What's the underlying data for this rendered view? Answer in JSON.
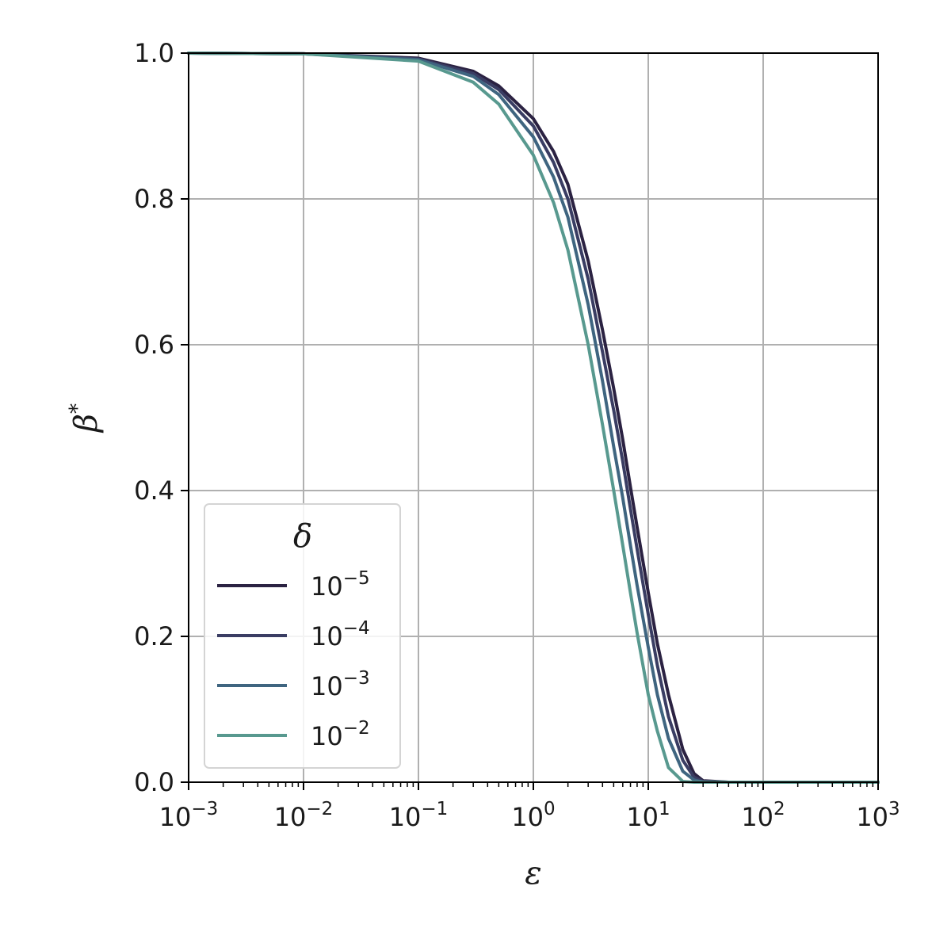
{
  "chart_data": {
    "type": "line",
    "title": "",
    "xlabel": "ε",
    "ylabel": "β*",
    "xscale": "log",
    "xlim": [
      0.001,
      1000
    ],
    "ylim": [
      0.0,
      1.0
    ],
    "grid": true,
    "legend": {
      "title": "δ",
      "placement": "lower-left"
    },
    "x_ticks": [
      {
        "value": 0.001,
        "base": "10",
        "exp": "−3"
      },
      {
        "value": 0.01,
        "base": "10",
        "exp": "−2"
      },
      {
        "value": 0.1,
        "base": "10",
        "exp": "−1"
      },
      {
        "value": 1,
        "base": "10",
        "exp": "0"
      },
      {
        "value": 10,
        "base": "10",
        "exp": "1"
      },
      {
        "value": 100,
        "base": "10",
        "exp": "2"
      },
      {
        "value": 1000,
        "base": "10",
        "exp": "3"
      }
    ],
    "y_ticks": [
      {
        "value": 0.0,
        "label": "0.0"
      },
      {
        "value": 0.2,
        "label": "0.2"
      },
      {
        "value": 0.4,
        "label": "0.4"
      },
      {
        "value": 0.6,
        "label": "0.6"
      },
      {
        "value": 0.8,
        "label": "0.8"
      },
      {
        "value": 1.0,
        "label": "1.0"
      }
    ],
    "x": [
      0.001,
      0.01,
      0.1,
      0.3,
      0.5,
      1,
      1.5,
      2,
      3,
      4,
      5,
      6,
      7,
      8,
      10,
      12,
      15,
      20,
      25,
      30,
      50,
      100,
      1000
    ],
    "series": [
      {
        "name": "10^-5",
        "label_base": "10",
        "label_exp": "−5",
        "color": "#2b2242",
        "values": [
          1.0,
          0.999,
          0.993,
          0.975,
          0.955,
          0.91,
          0.865,
          0.82,
          0.715,
          0.62,
          0.54,
          0.47,
          0.405,
          0.35,
          0.26,
          0.19,
          0.12,
          0.045,
          0.012,
          0.002,
          0.0,
          0.0,
          0.0
        ]
      },
      {
        "name": "10^-4",
        "label_base": "10",
        "label_exp": "−4",
        "color": "#3a3d63",
        "values": [
          1.0,
          0.999,
          0.992,
          0.972,
          0.95,
          0.9,
          0.85,
          0.8,
          0.69,
          0.59,
          0.51,
          0.44,
          0.375,
          0.32,
          0.23,
          0.16,
          0.09,
          0.03,
          0.007,
          0.001,
          0.0,
          0.0,
          0.0
        ]
      },
      {
        "name": "10^-3",
        "label_base": "10",
        "label_exp": "−3",
        "color": "#3f6580",
        "values": [
          1.0,
          0.999,
          0.991,
          0.968,
          0.943,
          0.885,
          0.83,
          0.775,
          0.655,
          0.55,
          0.46,
          0.39,
          0.325,
          0.27,
          0.185,
          0.12,
          0.06,
          0.015,
          0.003,
          0.0,
          0.0,
          0.0,
          0.0
        ]
      },
      {
        "name": "10^-2",
        "label_base": "10",
        "label_exp": "−2",
        "color": "#58998f",
        "values": [
          1.0,
          0.999,
          0.989,
          0.96,
          0.93,
          0.86,
          0.795,
          0.73,
          0.6,
          0.49,
          0.4,
          0.325,
          0.26,
          0.205,
          0.12,
          0.07,
          0.02,
          0.001,
          0.0,
          0.0,
          0.0,
          0.0,
          0.0
        ]
      }
    ]
  }
}
